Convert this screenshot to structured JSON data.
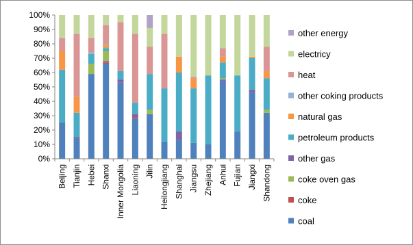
{
  "chart_data": {
    "type": "bar",
    "stacked": true,
    "normalized": true,
    "categories": [
      "Beijing",
      "Tianjin",
      "Hebei",
      "Shanxi",
      "Inner Mongolia",
      "Liaoning",
      "Jilin",
      "Heilongjiang",
      "Shanghai",
      "Jiangsu",
      "Zhejiang",
      "Anhui",
      "Fujian",
      "Jiangxi",
      "Shandong"
    ],
    "ylim": [
      0,
      100
    ],
    "yticks": [
      "0%",
      "10%",
      "20%",
      "30%",
      "40%",
      "50%",
      "60%",
      "70%",
      "80%",
      "90%",
      "100%"
    ],
    "grid": false,
    "legend_position": "right",
    "series": [
      {
        "name": "coal",
        "color": "#4F81BD",
        "values": [
          25,
          14,
          59,
          66,
          53,
          28,
          31,
          12,
          13,
          11,
          10,
          54,
          19,
          46,
          32
        ]
      },
      {
        "name": "coke",
        "color": "#C0504D",
        "values": [
          0,
          0,
          0,
          1,
          0,
          1,
          0,
          0,
          0,
          0,
          0,
          0,
          0,
          0,
          0
        ]
      },
      {
        "name": "other gas",
        "color": "#8064A2",
        "values": [
          0,
          1,
          0,
          1,
          2,
          2,
          0,
          0,
          6,
          0,
          0,
          1,
          0,
          2,
          0
        ]
      },
      {
        "name": "coke oven gas",
        "color": "#9BBB59",
        "values": [
          0,
          0,
          7,
          7,
          0,
          0,
          3,
          0,
          0,
          0,
          0,
          1,
          0,
          0,
          2
        ]
      },
      {
        "name": "petroleum products",
        "color": "#4BACC6",
        "values": [
          37,
          17,
          7,
          2,
          6,
          8,
          25,
          37,
          41,
          38,
          48,
          11,
          39,
          22,
          22
        ]
      },
      {
        "name": "natural gas",
        "color": "#F79646",
        "values": [
          13,
          11,
          0,
          2,
          0,
          0,
          0,
          0,
          11,
          7,
          0,
          4,
          0,
          1,
          5
        ]
      },
      {
        "name": "other coking products",
        "color": "#95B3D7",
        "values": [
          0,
          0,
          1,
          1,
          0,
          0,
          0,
          0,
          0,
          0,
          0,
          0,
          0,
          0,
          0
        ]
      },
      {
        "name": "heat",
        "color": "#D99694",
        "values": [
          9,
          44,
          10,
          13,
          34,
          48,
          19,
          38,
          0,
          1,
          0,
          6,
          0,
          0,
          17
        ]
      },
      {
        "name": "electricy",
        "color": "#C3D69B",
        "values": [
          16,
          13,
          16,
          7,
          5,
          13,
          13,
          13,
          29,
          43,
          42,
          23,
          42,
          29,
          22
        ]
      },
      {
        "name": "other energy",
        "color": "#B2A2C7",
        "values": [
          0,
          0,
          0,
          0,
          0,
          0,
          9,
          0,
          0,
          0,
          0,
          0,
          0,
          0,
          0
        ]
      }
    ],
    "legend_order": [
      "other energy",
      "electricy",
      "heat",
      "other coking products",
      "natural gas",
      "petroleum products",
      "other gas",
      "coke oven gas",
      "coke",
      "coal"
    ]
  }
}
